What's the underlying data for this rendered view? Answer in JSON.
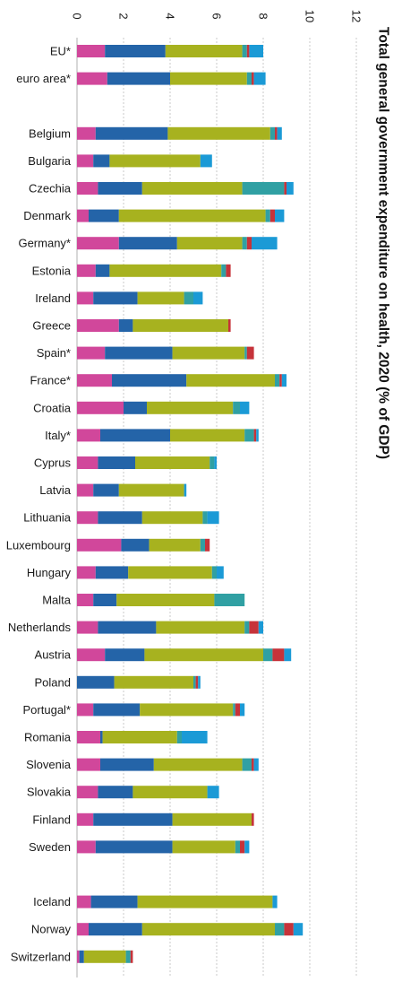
{
  "chart_data": {
    "type": "bar",
    "orientation": "horizontal",
    "stacked": true,
    "title": "Total general government expenditure on health, 2020 (% of GDP)",
    "xlabel": "",
    "ylabel": "",
    "xlim": [
      0,
      12
    ],
    "ticks": [
      "0",
      "2",
      "4",
      "6",
      "8",
      "10",
      "12"
    ],
    "grid": true,
    "legend": "none",
    "categories": [
      "EU*",
      "euro area*",
      "",
      "Belgium",
      "Bulgaria",
      "Czechia",
      "Denmark",
      "Germany*",
      "Estonia",
      "Ireland",
      "Greece",
      "Spain*",
      "France*",
      "Croatia",
      "Italy*",
      "Cyprus",
      "Latvia",
      "Lithuania",
      "Luxembourg",
      "Hungary",
      "Malta",
      "Netherlands",
      "Austria",
      "Poland",
      "Portugal*",
      "Romania",
      "Slovenia",
      "Slovakia",
      "Finland",
      "Sweden",
      "",
      "Iceland",
      "Norway",
      "Switzerland"
    ],
    "series": [
      {
        "color": "#d1479b",
        "values": [
          1.2,
          1.3,
          null,
          0.8,
          0.7,
          0.9,
          0.5,
          1.8,
          0.8,
          0.7,
          1.8,
          1.2,
          1.5,
          2.0,
          1.0,
          0.9,
          0.7,
          0.9,
          1.9,
          0.8,
          0.7,
          0.9,
          1.2,
          0.0,
          0.7,
          1.0,
          1.0,
          0.9,
          0.7,
          0.8,
          null,
          0.6,
          0.5,
          0.1
        ]
      },
      {
        "color": "#2464a8",
        "values": [
          2.6,
          2.7,
          null,
          3.1,
          0.7,
          1.9,
          1.3,
          2.5,
          0.6,
          1.9,
          0.6,
          2.9,
          3.2,
          1.0,
          3.0,
          1.6,
          1.1,
          1.9,
          1.2,
          1.4,
          1.0,
          2.5,
          1.7,
          1.6,
          2.0,
          0.1,
          2.3,
          1.5,
          3.4,
          3.3,
          null,
          2.0,
          2.3,
          0.2
        ]
      },
      {
        "color": "#a7b21f",
        "values": [
          3.3,
          3.3,
          null,
          4.4,
          3.9,
          4.3,
          6.3,
          2.8,
          4.8,
          2.0,
          4.1,
          3.1,
          3.8,
          3.7,
          3.2,
          3.2,
          2.8,
          2.6,
          2.2,
          3.6,
          4.2,
          3.8,
          5.1,
          3.4,
          4.0,
          3.2,
          3.8,
          3.2,
          3.4,
          2.7,
          null,
          5.8,
          5.7,
          1.8
        ]
      },
      {
        "color": "#30a0a3",
        "values": [
          0.2,
          0.2,
          null,
          0.2,
          0.0,
          1.8,
          0.2,
          0.2,
          0.2,
          0.4,
          0.0,
          0.1,
          0.2,
          0.3,
          0.4,
          0.2,
          0.0,
          0.2,
          0.2,
          0.2,
          1.3,
          0.2,
          0.4,
          0.1,
          0.1,
          0.2,
          0.4,
          0.0,
          0.0,
          0.2,
          null,
          0.0,
          0.4,
          0.2
        ]
      },
      {
        "color": "#c6333a",
        "values": [
          0.1,
          0.1,
          null,
          0.1,
          0.0,
          0.1,
          0.2,
          0.2,
          0.2,
          0.0,
          0.1,
          0.3,
          0.1,
          0.0,
          0.1,
          0.0,
          0.0,
          0.0,
          0.2,
          0.0,
          0.0,
          0.4,
          0.5,
          0.1,
          0.2,
          0.0,
          0.1,
          0.0,
          0.1,
          0.2,
          null,
          0.0,
          0.4,
          0.1
        ]
      },
      {
        "color": "#1b9ad6",
        "values": [
          0.6,
          0.5,
          null,
          0.2,
          0.5,
          0.3,
          0.4,
          1.1,
          0.0,
          0.4,
          0.0,
          0.0,
          0.2,
          0.4,
          0.1,
          0.1,
          0.1,
          0.5,
          0.0,
          0.3,
          0.0,
          0.2,
          0.3,
          0.1,
          0.2,
          1.1,
          0.2,
          0.5,
          0.0,
          0.2,
          null,
          0.2,
          0.4,
          0.0
        ]
      }
    ]
  }
}
